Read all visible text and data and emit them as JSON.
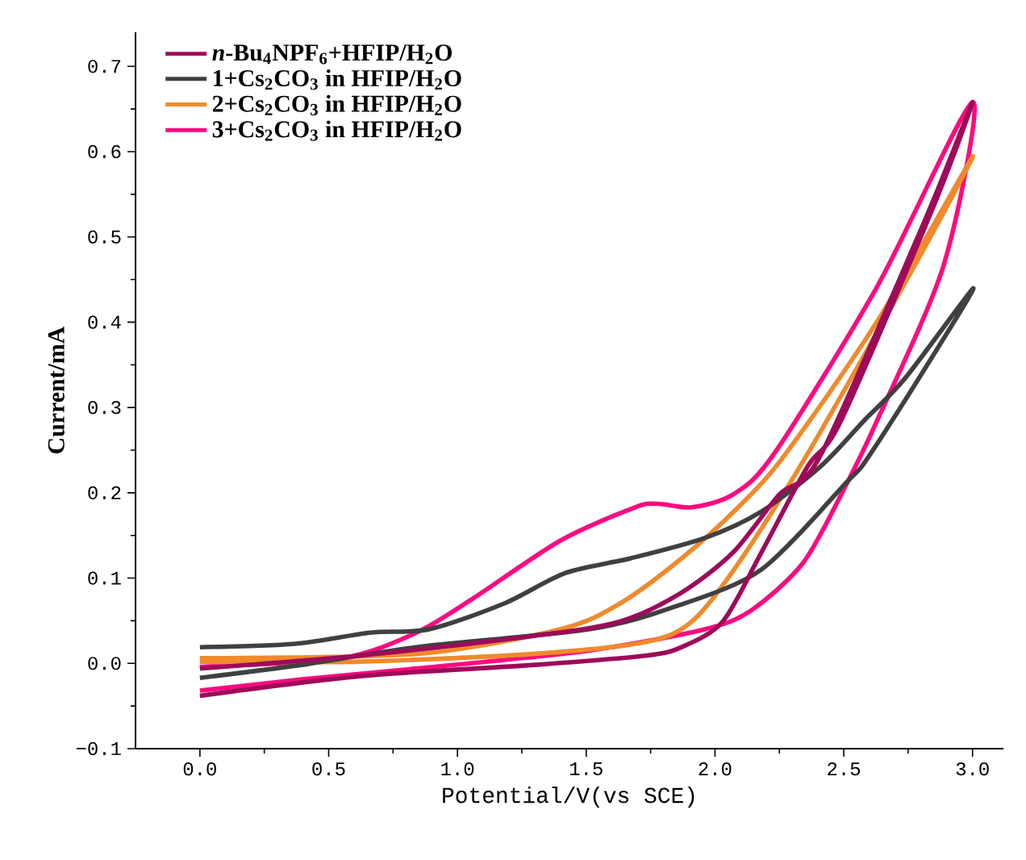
{
  "chart_data": {
    "type": "line",
    "xlabel": "Potential/V(vs SCE)",
    "ylabel": "Current/mA",
    "xlim": [
      -0.25,
      3.12
    ],
    "ylim": [
      -0.1,
      0.74
    ],
    "xticks": [
      {
        "value": 0,
        "label": "0.0"
      },
      0.5,
      {
        "value": 1,
        "label": "1.0"
      },
      1.5,
      {
        "value": 2,
        "label": "2.0"
      },
      2.5,
      {
        "value": 3,
        "label": "3.0"
      }
    ],
    "yticks": [
      {
        "value": -0.1,
        "label": "−0.1"
      },
      {
        "value": 0,
        "label": "0.0"
      },
      0.1,
      0.2,
      0.3,
      0.4,
      0.5,
      0.6,
      0.7
    ],
    "legend": "top left",
    "marker": "none",
    "line_style": "solid",
    "grid": false,
    "series": [
      {
        "name": "*n*-Bu$_{4}$NPF$_{6}$+HFIP/H$_{2}$O",
        "color": "#9e0a5a",
        "x": [
          0,
          0.62,
          1.29,
          1.73,
          1.87,
          2.03,
          2.18,
          2.36,
          2.49,
          2.85,
          3.0,
          2.81,
          2.41,
          2.25,
          2.07,
          1.87,
          1.63,
          1.29,
          0.62,
          0
        ],
        "values": [
          -0.038,
          -0.015,
          -0.002,
          0.009,
          0.019,
          0.049,
          0.13,
          0.231,
          0.285,
          0.537,
          0.658,
          0.516,
          0.244,
          0.198,
          0.13,
          0.083,
          0.049,
          0.032,
          0.009,
          -0.006
        ]
      },
      {
        "name": "1+Cs$_{2}$CO$_{3}$ in HFIP/H$_{2}$O",
        "color": "#404040",
        "x": [
          0,
          0.37,
          0.66,
          0.89,
          1.18,
          1.42,
          1.67,
          1.96,
          2.18,
          2.41,
          2.58,
          2.74,
          3.0,
          2.89,
          2.6,
          2.51,
          2.18,
          1.84,
          1.51,
          0.84,
          0.39,
          0
        ],
        "values": [
          0.019,
          0.023,
          0.036,
          0.04,
          0.07,
          0.106,
          0.123,
          0.147,
          0.178,
          0.231,
          0.285,
          0.335,
          0.439,
          0.382,
          0.244,
          0.212,
          0.11,
          0.066,
          0.04,
          0.019,
          -0.002,
          -0.017
        ]
      },
      {
        "name": "2+Cs$_{2}$CO$_{3}$ in HFIP/H$_{2}$O",
        "color": "#f08a2c",
        "x": [
          0,
          0.62,
          1.29,
          1.73,
          1.91,
          2.09,
          2.36,
          2.78,
          3.0,
          2.63,
          2.27,
          2.09,
          1.87,
          1.63,
          1.4,
          0.84,
          0
        ],
        "values": [
          0.002,
          0.002,
          0.011,
          0.025,
          0.049,
          0.117,
          0.246,
          0.469,
          0.594,
          0.401,
          0.244,
          0.183,
          0.123,
          0.07,
          0.04,
          0.011,
          0.006
        ]
      },
      {
        "name": "3+Cs$_{2}$CO$_{3}$ in HFIP/H$_{2}$O",
        "color": "#ff0a80",
        "x": [
          0,
          0.39,
          0.84,
          1.51,
          1.96,
          2.14,
          2.34,
          2.49,
          2.63,
          2.89,
          3.0,
          2.63,
          2.23,
          2.07,
          1.91,
          1.78,
          1.69,
          1.4,
          1.06,
          0.84,
          0.55,
          0
        ],
        "values": [
          -0.032,
          -0.019,
          -0.006,
          0.015,
          0.04,
          0.062,
          0.117,
          0.198,
          0.285,
          0.469,
          0.658,
          0.442,
          0.246,
          0.198,
          0.183,
          0.187,
          0.183,
          0.144,
          0.076,
          0.036,
          0.006,
          -0.004
        ]
      }
    ]
  }
}
